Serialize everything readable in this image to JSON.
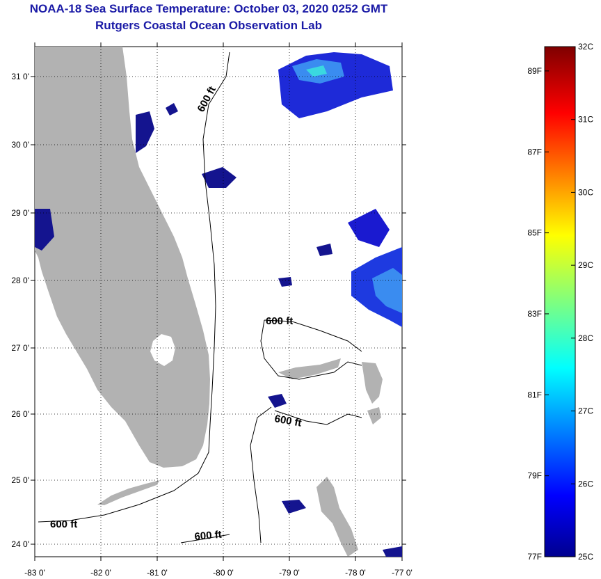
{
  "title": "NOAA-18 Sea Surface Temperature:  October 03, 2020 0252 GMT",
  "subtitle": "Rutgers Coastal Ocean Observation Lab",
  "lon_labels": [
    "-83 0'",
    "-82 0'",
    "-81 0'",
    "-80 0'",
    "-79 0'",
    "-78 0'",
    "-77 0'"
  ],
  "lat_labels": [
    "31 0'",
    "30 0'",
    "29 0'",
    "28 0'",
    "27 0'",
    "26 0'",
    "25 0'",
    "24 0'"
  ],
  "contour_label": "600 ft",
  "colorbar": {
    "celsius": [
      "32C",
      "31C",
      "30C",
      "29C",
      "28C",
      "27C",
      "26C",
      "25C"
    ],
    "fahrenheit": [
      "89F",
      "87F",
      "85F",
      "83F",
      "81F",
      "79F",
      "77F"
    ],
    "range_c": [
      25,
      32
    ]
  },
  "colors": {
    "land": "#b2b2b2",
    "title": "#1a1aa6",
    "cold": "#00008f",
    "warm": "#7f0000"
  }
}
